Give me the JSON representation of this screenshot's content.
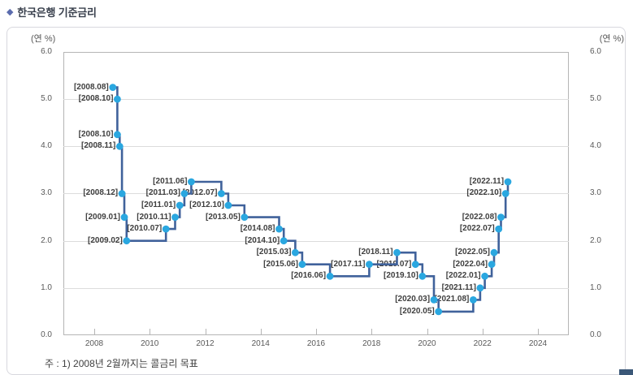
{
  "header": {
    "bullet": "◆",
    "title": "한국은행 기준금리"
  },
  "chart_data": {
    "type": "line",
    "step": true,
    "title": "한국은행 기준금리",
    "unit_label": "(연 %)",
    "footnote": "주 : 1) 2008년 2월까지는 콜금리 목표",
    "xlim": [
      2006.9,
      2025.2
    ],
    "ylim": [
      0,
      6
    ],
    "x_ticks": [
      "2008",
      "2010",
      "2012",
      "2014",
      "2016",
      "2018",
      "2020",
      "2022",
      "2024"
    ],
    "y_ticks": [
      "0.0",
      "1.0",
      "2.0",
      "3.0",
      "4.0",
      "5.0",
      "6.0"
    ],
    "grid": "horizontal",
    "legend": "none",
    "colors": {
      "line": "#40629B",
      "marker": "#2AA7E0"
    },
    "series": [
      {
        "name": "한국은행 기준금리",
        "points": [
          {
            "date": "2008.08",
            "rate": 5.25
          },
          {
            "date": "2008.10",
            "rate": 5.0
          },
          {
            "date": "2008.10",
            "rate": 4.25
          },
          {
            "date": "2008.11",
            "rate": 4.0
          },
          {
            "date": "2008.12",
            "rate": 3.0
          },
          {
            "date": "2009.01",
            "rate": 2.5
          },
          {
            "date": "2009.02",
            "rate": 2.0
          },
          {
            "date": "2010.07",
            "rate": 2.25
          },
          {
            "date": "2010.11",
            "rate": 2.5
          },
          {
            "date": "2011.01",
            "rate": 2.75
          },
          {
            "date": "2011.03",
            "rate": 3.0
          },
          {
            "date": "2011.06",
            "rate": 3.25
          },
          {
            "date": "2012.07",
            "rate": 3.0
          },
          {
            "date": "2012.10",
            "rate": 2.75
          },
          {
            "date": "2013.05",
            "rate": 2.5
          },
          {
            "date": "2014.08",
            "rate": 2.25
          },
          {
            "date": "2014.10",
            "rate": 2.0
          },
          {
            "date": "2015.03",
            "rate": 1.75
          },
          {
            "date": "2015.06",
            "rate": 1.5
          },
          {
            "date": "2016.06",
            "rate": 1.25
          },
          {
            "date": "2017.11",
            "rate": 1.5
          },
          {
            "date": "2018.11",
            "rate": 1.75
          },
          {
            "date": "2019.07",
            "rate": 1.5
          },
          {
            "date": "2019.10",
            "rate": 1.25
          },
          {
            "date": "2020.03",
            "rate": 0.75
          },
          {
            "date": "2020.05",
            "rate": 0.5
          },
          {
            "date": "2021.08",
            "rate": 0.75
          },
          {
            "date": "2021.11",
            "rate": 1.0
          },
          {
            "date": "2022.01",
            "rate": 1.25
          },
          {
            "date": "2022.04",
            "rate": 1.5
          },
          {
            "date": "2022.05",
            "rate": 1.75
          },
          {
            "date": "2022.07",
            "rate": 2.25
          },
          {
            "date": "2022.08",
            "rate": 2.5
          },
          {
            "date": "2022.10",
            "rate": 3.0
          },
          {
            "date": "2022.11",
            "rate": 3.25
          }
        ]
      }
    ]
  }
}
